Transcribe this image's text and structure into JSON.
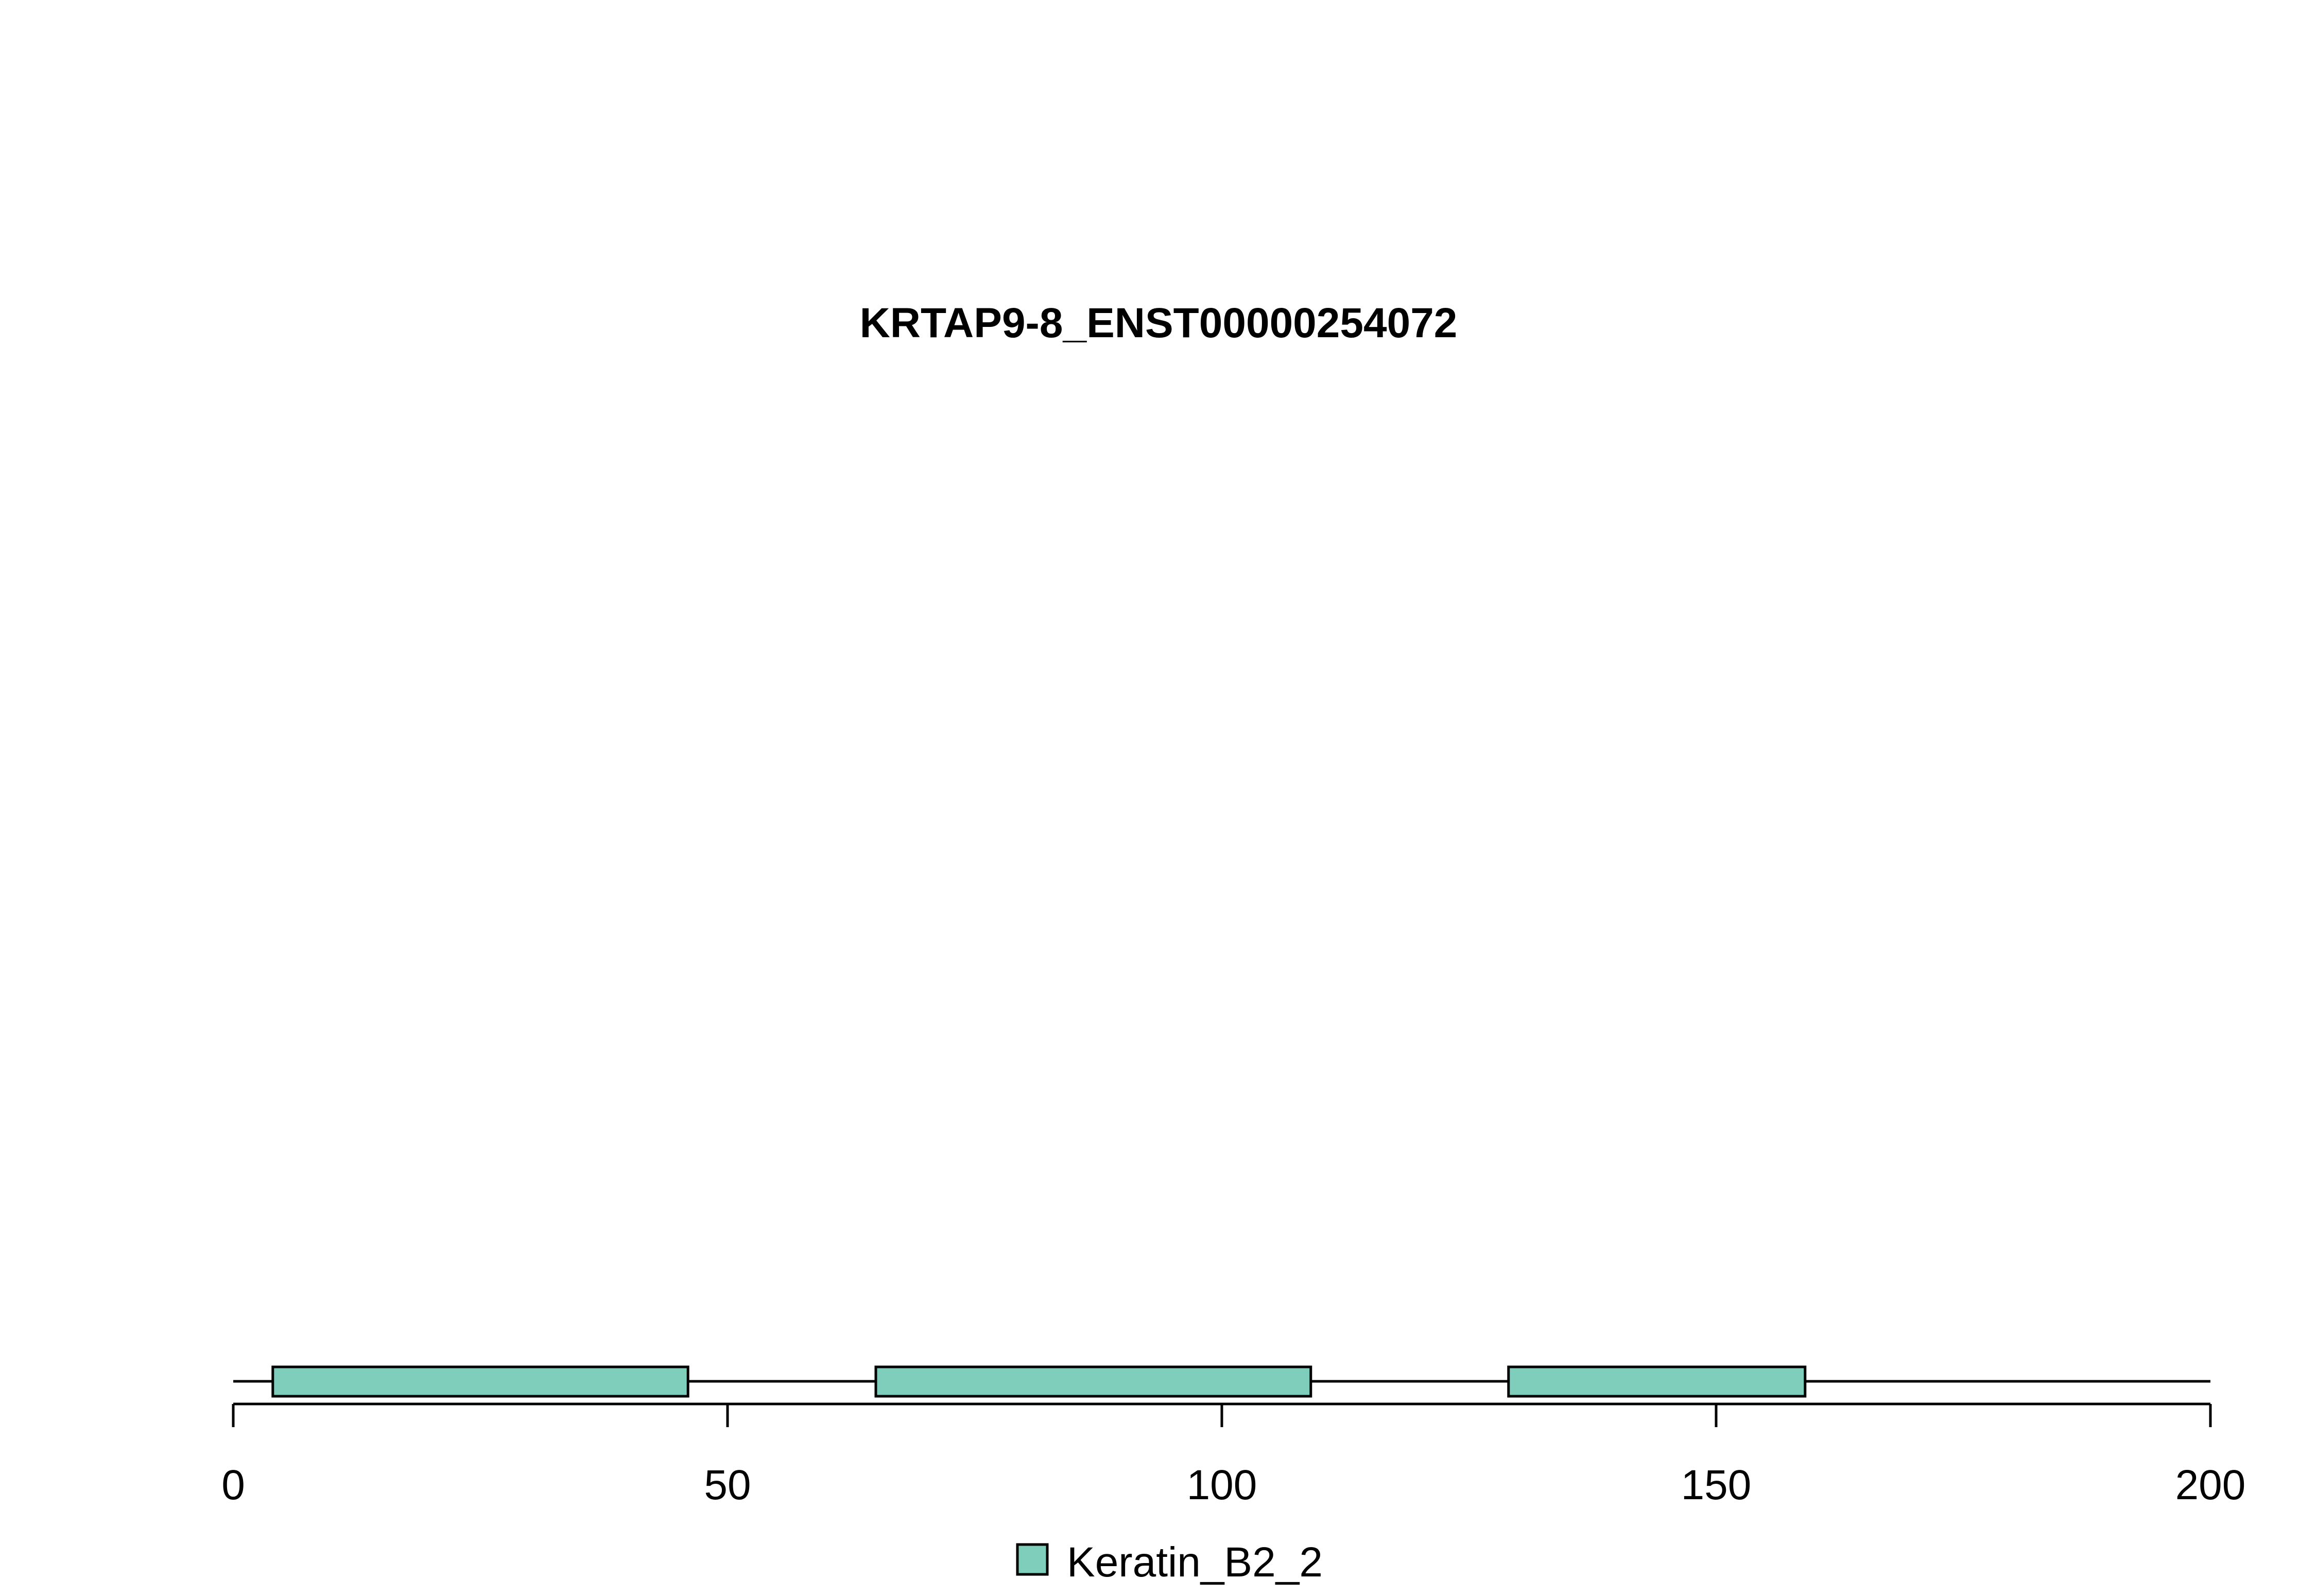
{
  "chart_data": {
    "type": "bar",
    "title": "KRTAP9-8_ENST00000254072",
    "xlabel": "",
    "ylabel": "",
    "xlim": [
      0,
      200
    ],
    "sequence_length": 200,
    "x_ticks": [
      0,
      50,
      100,
      150,
      200
    ],
    "x_tick_labels": [
      "0",
      "50",
      "100",
      "150",
      "200"
    ],
    "grid": false,
    "legend_position": "bottom",
    "series": [
      {
        "name": "Keratin_B2_2",
        "color": "#7fcdbb",
        "domains": [
          {
            "start": 4,
            "end": 46
          },
          {
            "start": 65,
            "end": 109
          },
          {
            "start": 129,
            "end": 159
          }
        ]
      }
    ]
  }
}
